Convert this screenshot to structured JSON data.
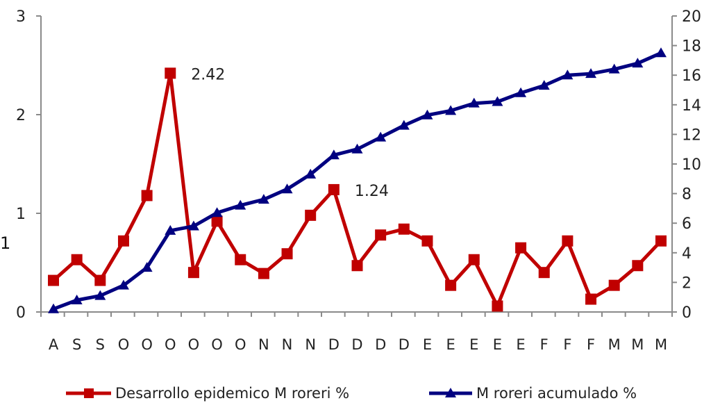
{
  "stray_label": "1",
  "chart_data": {
    "type": "line",
    "categories": [
      "A",
      "S",
      "S",
      "O",
      "O",
      "O",
      "O",
      "O",
      "O",
      "N",
      "N",
      "N",
      "D",
      "D",
      "D",
      "D",
      "E",
      "E",
      "E",
      "E",
      "E",
      "F",
      "F",
      "F",
      "M",
      "M",
      "M"
    ],
    "series": [
      {
        "name": "Desarrollo epidemico M roreri %",
        "axis": "left",
        "color": "#c00000",
        "marker": "square",
        "values": [
          0.32,
          0.53,
          0.32,
          0.72,
          1.18,
          2.42,
          0.4,
          0.92,
          0.53,
          0.39,
          0.59,
          0.98,
          1.24,
          0.47,
          0.78,
          0.84,
          0.72,
          0.27,
          0.53,
          0.06,
          0.65,
          0.4,
          0.72,
          0.13,
          0.27,
          0.47,
          0.72
        ]
      },
      {
        "name": "M roreri acumulado %",
        "axis": "right",
        "color": "#000080",
        "marker": "triangle",
        "values": [
          0.2,
          0.8,
          1.1,
          1.8,
          3.0,
          5.5,
          5.8,
          6.7,
          7.2,
          7.6,
          8.3,
          9.3,
          10.6,
          11.0,
          11.8,
          12.6,
          13.3,
          13.6,
          14.1,
          14.2,
          14.8,
          15.3,
          16.0,
          16.1,
          16.4,
          16.8,
          17.5
        ]
      }
    ],
    "annotations": [
      {
        "label": "2.42",
        "series": 0,
        "index": 5
      },
      {
        "label": "1.24",
        "series": 0,
        "index": 12
      }
    ],
    "y_left": {
      "min": 0,
      "max": 3,
      "ticks": [
        "0",
        "1",
        "2",
        "3"
      ]
    },
    "y_right": {
      "min": 0,
      "max": 20,
      "ticks": [
        "0",
        "2",
        "4",
        "6",
        "8",
        "10",
        "12",
        "14",
        "16",
        "18",
        "20"
      ]
    },
    "legend_position": "bottom",
    "grid": false
  }
}
